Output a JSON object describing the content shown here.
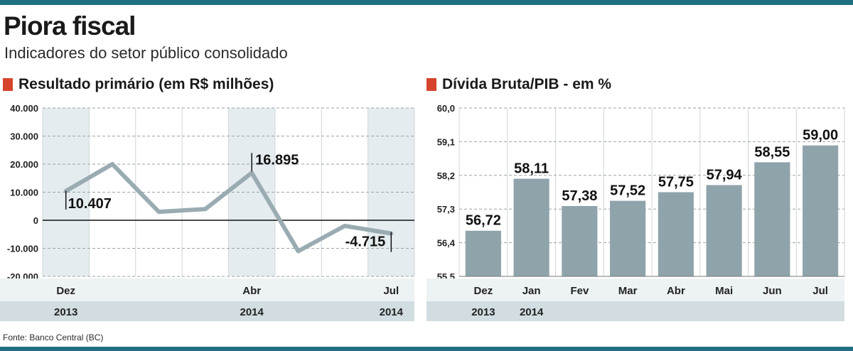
{
  "header": {
    "title": "Piora fiscal",
    "subtitle": "Indicadores do setor público consolidado"
  },
  "footer": {
    "source": "Fonte: Banco Central (BC)"
  },
  "colors": {
    "rule": "#1f6f82",
    "marker": "#d6442c",
    "line": "#9aabb2",
    "bar": "#8fa3ab",
    "shade": "#e4ecef",
    "band": "#d2dde1"
  },
  "chart_data": [
    {
      "type": "line",
      "title": "Resultado primário (em R$ milhões)",
      "categories": [
        "Dez",
        "Jan",
        "Fev",
        "Mar",
        "Abr",
        "Mai",
        "Jun",
        "Jul"
      ],
      "x_tick_labels": [
        "Dez",
        "",
        "",
        "",
        "Abr",
        "",
        "",
        "Jul"
      ],
      "year_labels": [
        "2013",
        "",
        "",
        "",
        "2014",
        "",
        "",
        "2014"
      ],
      "values": [
        10407,
        20000,
        3000,
        4000,
        16895,
        -11000,
        -2000,
        -4715
      ],
      "data_labels": [
        "10.407",
        "",
        "",
        "",
        "16.895",
        "",
        "",
        "-4.715"
      ],
      "yticks": [
        "40.000",
        "30.000",
        "20.000",
        "10.000",
        "0",
        "-10.000",
        "-20.000"
      ],
      "ylim": [
        -20000,
        40000
      ],
      "grid": true
    },
    {
      "type": "bar",
      "title": "Dívida Bruta/PIB - em %",
      "categories": [
        "Dez",
        "Jan",
        "Fev",
        "Mar",
        "Abr",
        "Mai",
        "Jun",
        "Jul"
      ],
      "year_labels": [
        "2013",
        "2014",
        "",
        "",
        "",
        "",
        "",
        ""
      ],
      "values": [
        56.72,
        58.11,
        57.38,
        57.52,
        57.75,
        57.94,
        58.55,
        59.0
      ],
      "data_labels": [
        "56,72",
        "58,11",
        "57,38",
        "57,52",
        "57,75",
        "57,94",
        "58,55",
        "59,00"
      ],
      "yticks": [
        "60,0",
        "59,1",
        "58,2",
        "57,3",
        "56,4",
        "55,5"
      ],
      "ylim": [
        55.5,
        60.0
      ],
      "grid": true
    }
  ]
}
